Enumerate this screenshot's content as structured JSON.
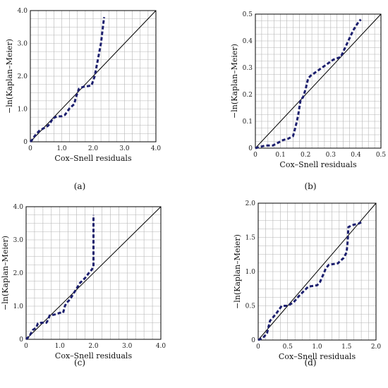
{
  "chart_data": [
    {
      "type": "line",
      "label": "(a)",
      "xlabel": "Cox–Snell residuals",
      "ylabel": "−ln(Kaplan–Meier)",
      "xlim": [
        0,
        4.0
      ],
      "ylim": [
        0,
        4.0
      ],
      "grid": true,
      "xticks": [
        "0",
        "1.0",
        "2.0",
        "3.0",
        "4.0"
      ],
      "yticks": [
        "0",
        "1.0",
        "2.0",
        "3.0",
        "4.0"
      ],
      "tick_values": [
        0,
        1,
        2,
        3,
        4
      ],
      "reference_line": [
        [
          0,
          0
        ],
        [
          4.0,
          4.0
        ]
      ],
      "series": [
        {
          "x": [
            0.0,
            0.05,
            0.12,
            0.2,
            0.28,
            0.4,
            0.55,
            0.62,
            0.72,
            0.85,
            1.0,
            1.1,
            1.25,
            1.4,
            1.45,
            1.55,
            1.7,
            1.85,
            1.95,
            2.05,
            2.15,
            2.25,
            2.3,
            2.35
          ],
          "y": [
            0.0,
            0.05,
            0.15,
            0.25,
            0.33,
            0.4,
            0.48,
            0.55,
            0.72,
            0.77,
            0.78,
            0.82,
            1.02,
            1.15,
            1.35,
            1.62,
            1.68,
            1.7,
            1.72,
            2.0,
            2.5,
            3.0,
            3.4,
            3.8
          ]
        }
      ]
    },
    {
      "type": "line",
      "label": "(b)",
      "xlabel": "Cox–Snell residuals",
      "ylabel": "−ln(Kaplan–Meier)",
      "xlim": [
        0,
        0.5
      ],
      "ylim": [
        0,
        0.5
      ],
      "grid": true,
      "xticks": [
        "0",
        "0.1",
        "0.2",
        "0.3",
        "0.4",
        "0.5"
      ],
      "yticks": [
        "0",
        "0.1",
        "0.2",
        "0.3",
        "0.4",
        "0.5"
      ],
      "tick_values": [
        0,
        0.1,
        0.2,
        0.3,
        0.4,
        0.5
      ],
      "reference_line": [
        [
          0,
          0
        ],
        [
          0.5,
          0.5
        ]
      ],
      "series": [
        {
          "x": [
            0.0,
            0.02,
            0.04,
            0.07,
            0.09,
            0.11,
            0.13,
            0.15,
            0.16,
            0.17,
            0.18,
            0.19,
            0.2,
            0.21,
            0.22,
            0.25,
            0.28,
            0.31,
            0.34,
            0.35,
            0.37,
            0.39,
            0.41,
            0.42
          ],
          "y": [
            0.0,
            0.005,
            0.01,
            0.01,
            0.02,
            0.03,
            0.035,
            0.045,
            0.08,
            0.12,
            0.18,
            0.19,
            0.22,
            0.26,
            0.27,
            0.29,
            0.31,
            0.33,
            0.34,
            0.36,
            0.4,
            0.44,
            0.47,
            0.48
          ]
        }
      ]
    },
    {
      "type": "line",
      "label": "(c)",
      "xlabel": "Cox–Snell residuals",
      "ylabel": "−ln(Kaplan–Meier)",
      "xlim": [
        0,
        4.0
      ],
      "ylim": [
        0,
        4.0
      ],
      "grid": true,
      "xticks": [
        "0",
        "1.0",
        "2.0",
        "3.0",
        "4.0"
      ],
      "yticks": [
        "0",
        "1.0",
        "2.0",
        "3.0",
        "4.0"
      ],
      "tick_values": [
        0,
        1,
        2,
        3,
        4
      ],
      "reference_line": [
        [
          0,
          0
        ],
        [
          4.0,
          4.0
        ]
      ],
      "series": [
        {
          "x": [
            0.0,
            0.1,
            0.2,
            0.3,
            0.35,
            0.45,
            0.6,
            0.65,
            0.7,
            0.85,
            1.0,
            1.1,
            1.15,
            1.2,
            1.3,
            1.45,
            1.6,
            1.75,
            1.9,
            1.95,
            2.0,
            2.0,
            2.0
          ],
          "y": [
            0.0,
            0.1,
            0.28,
            0.35,
            0.48,
            0.5,
            0.5,
            0.58,
            0.72,
            0.75,
            0.8,
            0.8,
            1.0,
            1.1,
            1.2,
            1.45,
            1.7,
            1.85,
            2.05,
            2.1,
            2.2,
            3.0,
            3.75
          ]
        }
      ]
    },
    {
      "type": "line",
      "label": "(d)",
      "xlabel": "Cox–Snell residuals",
      "ylabel": "−ln(Kaplan–Meier)",
      "xlim": [
        0,
        2.0
      ],
      "ylim": [
        0,
        2.0
      ],
      "grid": true,
      "xticks": [
        "0",
        "0.5",
        "1.0",
        "1.5",
        "2.0"
      ],
      "yticks": [
        "0",
        "0.5",
        "1.0",
        "1.5",
        "2.0"
      ],
      "tick_values": [
        0,
        0.5,
        1.0,
        1.5,
        2.0
      ],
      "reference_line": [
        [
          0,
          0
        ],
        [
          2.0,
          2.0
        ]
      ],
      "series": [
        {
          "x": [
            0.0,
            0.08,
            0.15,
            0.2,
            0.3,
            0.4,
            0.5,
            0.6,
            0.7,
            0.85,
            1.0,
            1.05,
            1.1,
            1.15,
            1.2,
            1.35,
            1.45,
            1.5,
            1.52,
            1.53,
            1.6,
            1.7,
            1.75
          ],
          "y": [
            0.0,
            0.03,
            0.1,
            0.28,
            0.38,
            0.5,
            0.5,
            0.55,
            0.65,
            0.78,
            0.8,
            0.85,
            0.95,
            1.05,
            1.1,
            1.12,
            1.2,
            1.28,
            1.45,
            1.65,
            1.68,
            1.7,
            1.72
          ]
        }
      ]
    }
  ]
}
